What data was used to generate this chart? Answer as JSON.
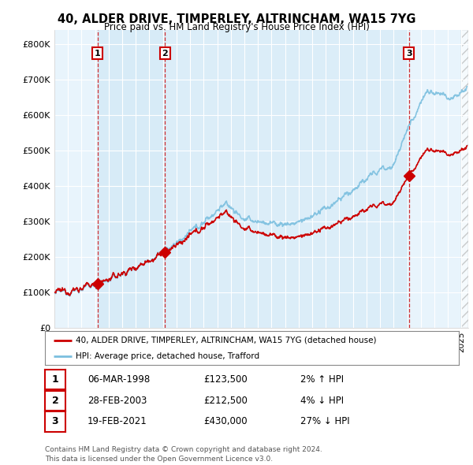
{
  "title": "40, ALDER DRIVE, TIMPERLEY, ALTRINCHAM, WA15 7YG",
  "subtitle": "Price paid vs. HM Land Registry's House Price Index (HPI)",
  "ylabel_ticks": [
    "£0",
    "£100K",
    "£200K",
    "£300K",
    "£400K",
    "£500K",
    "£600K",
    "£700K",
    "£800K"
  ],
  "ytick_values": [
    0,
    100000,
    200000,
    300000,
    400000,
    500000,
    600000,
    700000,
    800000
  ],
  "ylim": [
    0,
    840000
  ],
  "xlim_start": 1995.0,
  "xlim_end": 2025.5,
  "transactions": [
    {
      "date_num": 1998.17,
      "price": 123500,
      "label": "1"
    },
    {
      "date_num": 2003.15,
      "price": 212500,
      "label": "2"
    },
    {
      "date_num": 2021.13,
      "price": 430000,
      "label": "3"
    }
  ],
  "hpi_color": "#7bbfdf",
  "price_paid_color": "#cc0000",
  "shade_color": "#d0e8f5",
  "legend_label_price": "40, ALDER DRIVE, TIMPERLEY, ALTRINCHAM, WA15 7YG (detached house)",
  "legend_label_hpi": "HPI: Average price, detached house, Trafford",
  "table_rows": [
    {
      "num": "1",
      "date": "06-MAR-1998",
      "price": "£123,500",
      "hpi": "2% ↑ HPI"
    },
    {
      "num": "2",
      "date": "28-FEB-2003",
      "price": "£212,500",
      "hpi": "4% ↓ HPI"
    },
    {
      "num": "3",
      "date": "19-FEB-2021",
      "price": "£430,000",
      "hpi": "27% ↓ HPI"
    }
  ],
  "footer": "Contains HM Land Registry data © Crown copyright and database right 2024.\nThis data is licensed under the Open Government Licence v3.0.",
  "bg_color": "#ffffff",
  "plot_bg_color": "#e8f4fc",
  "grid_color": "#ffffff",
  "dashed_color": "#cc0000"
}
